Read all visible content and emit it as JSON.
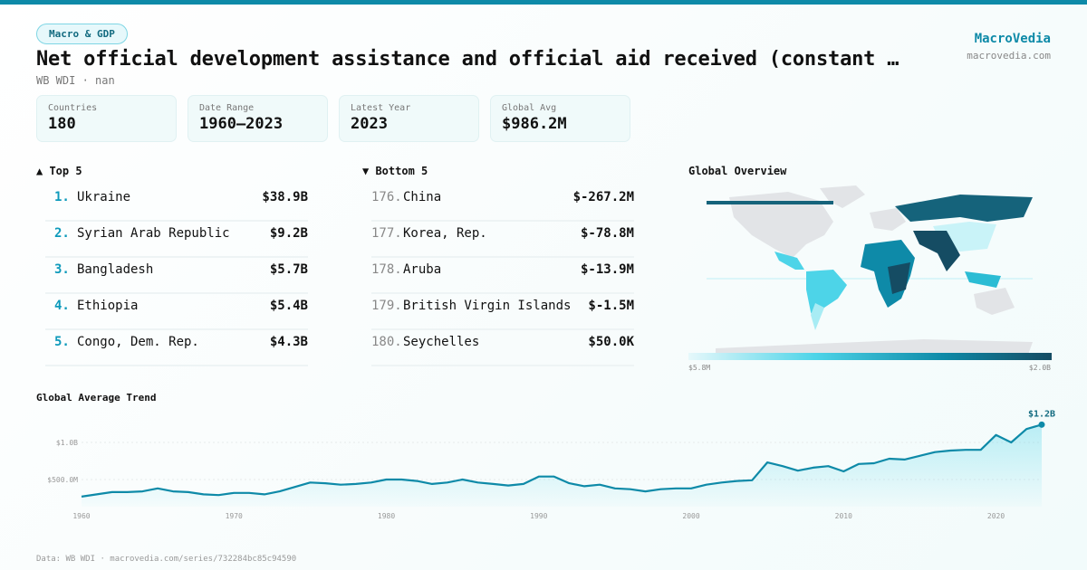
{
  "header": {
    "category": "Macro & GDP",
    "title": "Net official development assistance and official aid received (constant …",
    "subtitle": "WB WDI · nan",
    "brand": "MacroVedia",
    "brand_url": "macrovedia.com"
  },
  "stats": [
    {
      "label": "Countries",
      "value": "180"
    },
    {
      "label": "Date Range",
      "value": "1960–2023"
    },
    {
      "label": "Latest Year",
      "value": "2023"
    },
    {
      "label": "Global Avg",
      "value": "$986.2M"
    }
  ],
  "top5": {
    "title": "▲ Top 5",
    "items": [
      {
        "rank": "1.",
        "name": "Ukraine",
        "value": "$38.9B"
      },
      {
        "rank": "2.",
        "name": "Syrian Arab Republic",
        "value": "$9.2B"
      },
      {
        "rank": "3.",
        "name": "Bangladesh",
        "value": "$5.7B"
      },
      {
        "rank": "4.",
        "name": "Ethiopia",
        "value": "$5.4B"
      },
      {
        "rank": "5.",
        "name": "Congo, Dem. Rep.",
        "value": "$4.3B"
      }
    ]
  },
  "bottom5": {
    "title": "▼ Bottom 5",
    "items": [
      {
        "rank": "176.",
        "name": "China",
        "value": "$-267.2M"
      },
      {
        "rank": "177.",
        "name": "Korea, Rep.",
        "value": "$-78.8M"
      },
      {
        "rank": "178.",
        "name": "Aruba",
        "value": "$-13.9M"
      },
      {
        "rank": "179.",
        "name": "British Virgin Islands",
        "value": "$-1.5M"
      },
      {
        "rank": "180.",
        "name": "Seychelles",
        "value": "$50.0K"
      }
    ]
  },
  "map": {
    "title": "Global Overview",
    "legend_min": "$5.8M",
    "legend_max": "$2.0B",
    "colors": [
      "#e6f8fb",
      "#4dd4e8",
      "#0e8aa8",
      "#154c63"
    ]
  },
  "chart_data": {
    "type": "area",
    "title": "Global Average Trend",
    "xlabel": "",
    "ylabel": "",
    "x": [
      1960,
      1961,
      1962,
      1963,
      1964,
      1965,
      1966,
      1967,
      1968,
      1969,
      1970,
      1971,
      1972,
      1973,
      1974,
      1975,
      1976,
      1977,
      1978,
      1979,
      1980,
      1981,
      1982,
      1983,
      1984,
      1985,
      1986,
      1987,
      1988,
      1989,
      1990,
      1991,
      1992,
      1993,
      1994,
      1995,
      1996,
      1997,
      1998,
      1999,
      2000,
      2001,
      2002,
      2003,
      2004,
      2005,
      2006,
      2007,
      2008,
      2009,
      2010,
      2011,
      2012,
      2013,
      2014,
      2015,
      2016,
      2017,
      2018,
      2019,
      2020,
      2021,
      2022,
      2023
    ],
    "values_billions": [
      0.27,
      0.3,
      0.33,
      0.33,
      0.34,
      0.38,
      0.34,
      0.33,
      0.3,
      0.29,
      0.32,
      0.32,
      0.3,
      0.34,
      0.4,
      0.46,
      0.45,
      0.43,
      0.44,
      0.46,
      0.5,
      0.5,
      0.48,
      0.44,
      0.46,
      0.5,
      0.46,
      0.44,
      0.42,
      0.44,
      0.54,
      0.54,
      0.45,
      0.41,
      0.43,
      0.38,
      0.37,
      0.34,
      0.37,
      0.38,
      0.38,
      0.43,
      0.46,
      0.48,
      0.49,
      0.73,
      0.68,
      0.62,
      0.66,
      0.68,
      0.61,
      0.71,
      0.72,
      0.78,
      0.77,
      0.82,
      0.87,
      0.89,
      0.9,
      0.9,
      1.1,
      1.0,
      1.18,
      1.24
    ],
    "y_ticks": [
      {
        "v": 0.5,
        "label": "$500.0M"
      },
      {
        "v": 1.0,
        "label": "$1.0B"
      }
    ],
    "x_ticks": [
      "1960",
      "1970",
      "1980",
      "1990",
      "2000",
      "2010",
      "2020"
    ],
    "last_label": "$1.2B",
    "grid": true,
    "color": "#0e8aa8"
  },
  "footer": "Data: WB WDI · macrovedia.com/series/732284bc85c94590"
}
